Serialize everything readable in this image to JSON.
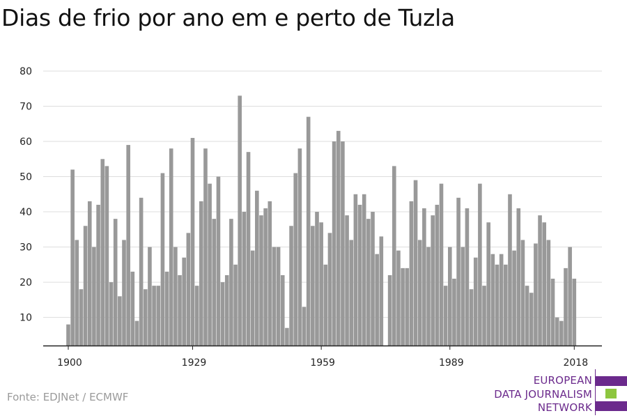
{
  "title": "Dias de frio por ano em e perto de Tuzla",
  "source": "Fonte: EDJNet / ECMWF",
  "logo": {
    "lines": [
      "EUROPEAN",
      "DATA JOURNALISM",
      "NETWORK"
    ],
    "colors": {
      "purple": "#6b2a8c",
      "green": "#8dc63f"
    }
  },
  "chart_data": {
    "type": "bar",
    "title": "Dias de frio por ano em e perto de Tuzla",
    "xlabel": "",
    "ylabel": "",
    "ylim": [
      2,
      80
    ],
    "yticks": [
      10,
      20,
      30,
      40,
      50,
      60,
      70,
      80
    ],
    "xticks": [
      1900,
      1929,
      1959,
      1989,
      2018
    ],
    "grid": true,
    "bar_color": "#999999",
    "x": [
      1900,
      1901,
      1902,
      1903,
      1904,
      1905,
      1906,
      1907,
      1908,
      1909,
      1910,
      1911,
      1912,
      1913,
      1914,
      1915,
      1916,
      1917,
      1918,
      1919,
      1920,
      1921,
      1922,
      1923,
      1924,
      1925,
      1926,
      1927,
      1928,
      1929,
      1930,
      1931,
      1932,
      1933,
      1934,
      1935,
      1936,
      1937,
      1938,
      1939,
      1940,
      1941,
      1942,
      1943,
      1944,
      1945,
      1946,
      1947,
      1948,
      1949,
      1950,
      1951,
      1952,
      1953,
      1954,
      1955,
      1956,
      1957,
      1958,
      1959,
      1960,
      1961,
      1962,
      1963,
      1964,
      1965,
      1966,
      1967,
      1968,
      1969,
      1970,
      1971,
      1972,
      1973,
      1974,
      1975,
      1976,
      1977,
      1978,
      1979,
      1980,
      1981,
      1982,
      1983,
      1984,
      1985,
      1986,
      1987,
      1988,
      1989,
      1990,
      1991,
      1992,
      1993,
      1994,
      1995,
      1996,
      1997,
      1998,
      1999,
      2000,
      2001,
      2002,
      2003,
      2004,
      2005,
      2006,
      2007,
      2008,
      2009,
      2010,
      2011,
      2012,
      2013,
      2014,
      2015,
      2016,
      2017,
      2018
    ],
    "values": [
      8,
      52,
      32,
      18,
      36,
      43,
      30,
      42,
      55,
      53,
      20,
      38,
      16,
      32,
      59,
      23,
      9,
      44,
      18,
      30,
      19,
      19,
      51,
      23,
      58,
      30,
      22,
      27,
      34,
      61,
      19,
      43,
      58,
      48,
      38,
      50,
      20,
      22,
      38,
      25,
      73,
      40,
      57,
      29,
      46,
      39,
      41,
      43,
      30,
      30,
      22,
      7,
      36,
      51,
      58,
      13,
      67,
      36,
      40,
      37,
      25,
      34,
      60,
      63,
      60,
      39,
      32,
      45,
      42,
      45,
      38,
      40,
      28,
      33,
      2,
      22,
      53,
      29,
      24,
      24,
      43,
      49,
      32,
      41,
      30,
      39,
      42,
      48,
      19,
      30,
      21,
      44,
      30,
      41,
      18,
      27,
      48,
      19,
      37,
      28,
      25,
      28,
      25,
      45,
      29,
      41,
      32,
      19,
      17,
      31,
      39,
      37,
      32,
      21,
      10,
      9,
      24,
      30,
      21
    ]
  }
}
